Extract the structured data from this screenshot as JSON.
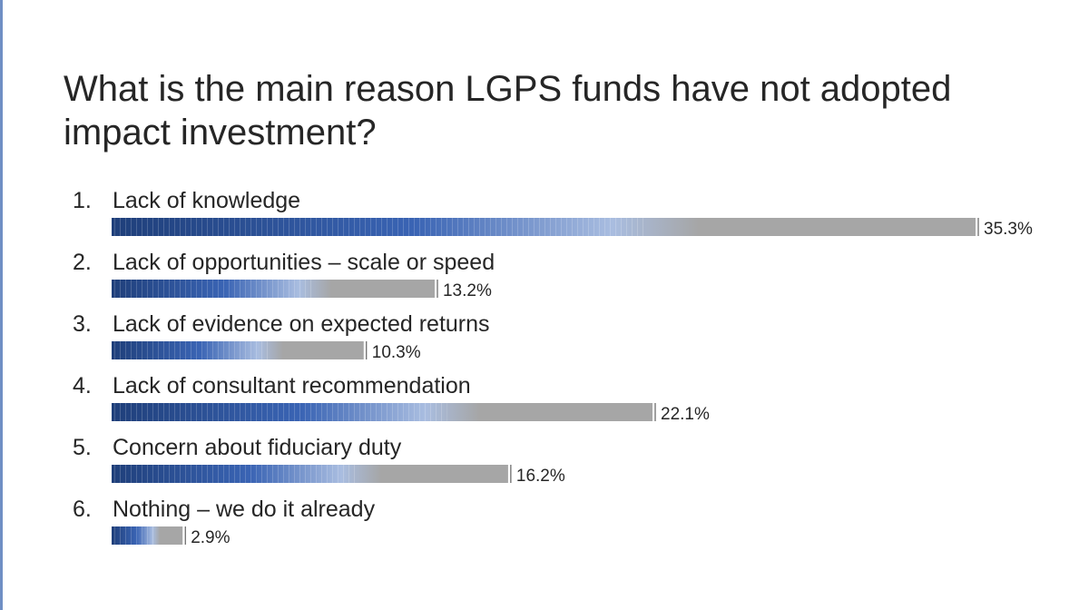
{
  "title": "What is the main reason LGPS funds have not adopted impact investment?",
  "colors": {
    "bar_dark": "#1f3f7a",
    "bar_mid": "#3a64b4",
    "bar_light": "#a9bde0",
    "bar_grey": "#a6a6a6",
    "accent_rule": "#6f8fc4"
  },
  "chart_data": {
    "type": "bar",
    "orientation": "horizontal",
    "title": "What is the main reason LGPS funds have not adopted impact investment?",
    "categories": [
      "Lack of knowledge",
      "Lack of opportunities  –  scale or speed",
      "Lack of evidence on expected returns",
      "Lack of consultant recommendation",
      "Concern about fiduciary duty",
      "Nothing – we do it already"
    ],
    "numbers": [
      "1.",
      "2.",
      "3.",
      "4.",
      "5.",
      "6."
    ],
    "values": [
      35.3,
      13.2,
      10.3,
      22.1,
      16.2,
      2.9
    ],
    "value_labels": [
      "35.3%",
      "13.2%",
      "10.3%",
      "22.1%",
      "16.2%",
      "2.9%"
    ],
    "unit": "%",
    "xlim": [
      0,
      35.3
    ],
    "grid": false,
    "legend": "none"
  }
}
